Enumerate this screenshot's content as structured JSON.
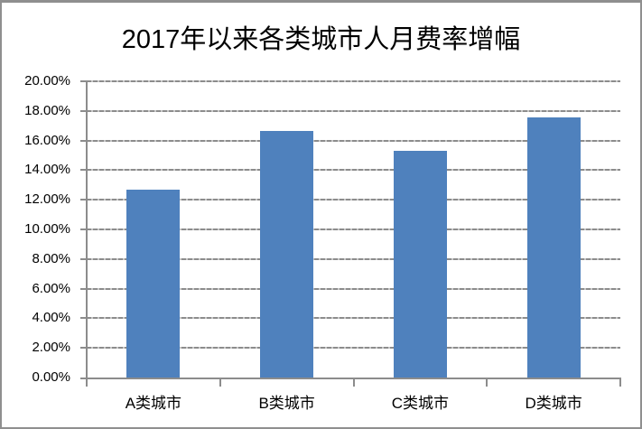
{
  "chart_data": {
    "type": "bar",
    "title": "2017年以来各类城市人月费率增幅",
    "categories": [
      "A类城市",
      "B类城市",
      "C类城市",
      "D类城市"
    ],
    "values": [
      12.7,
      16.65,
      15.3,
      17.55
    ],
    "value_unit": "%",
    "xlabel": "",
    "ylabel": "",
    "ylim": [
      0,
      20
    ],
    "ytick_step": 2,
    "ytick_labels": [
      "0.00%",
      "2.00%",
      "4.00%",
      "6.00%",
      "8.00%",
      "10.00%",
      "12.00%",
      "14.00%",
      "16.00%",
      "18.00%",
      "20.00%"
    ],
    "grid": true,
    "gridline_style": "dashed",
    "legend": "none",
    "colors": {
      "bar": "#4f81bd",
      "grid_dash": "#8c8c8c",
      "grid_gap": "#c6c6c6",
      "axis": "#8c8c8c",
      "frame": "#8f8f8f",
      "title_text": "#000000",
      "label_text": "#000000",
      "background": "#ffffff"
    }
  }
}
